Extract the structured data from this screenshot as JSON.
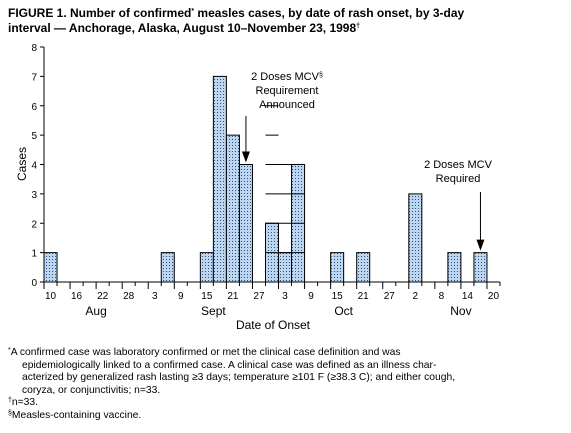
{
  "title": {
    "line1": "FIGURE 1. Number of confirmed",
    "mark1": "*",
    "line1b": " measles cases, by date of rash onset, by 3-day",
    "line2": "interval — Anchorage, Alaska, August 10–November 23, 1998",
    "mark2": "†"
  },
  "chart_data": {
    "type": "bar",
    "ylabel": "Cases",
    "xlabel": "Date of Onset",
    "ylim": [
      0,
      8
    ],
    "yticks": [
      "0",
      "1",
      "2",
      "3",
      "4",
      "5",
      "6",
      "7",
      "8"
    ],
    "xtick_labels": [
      "10",
      "16",
      "22",
      "28",
      "3",
      "9",
      "15",
      "21",
      "27",
      "3",
      "9",
      "15",
      "21",
      "27",
      "2",
      "8",
      "14",
      "20"
    ],
    "month_labels": [
      "Aug",
      "Sept",
      "Oct",
      "Nov"
    ],
    "categories": [
      "Aug 10",
      "Aug 13",
      "Aug 16",
      "Aug 19",
      "Aug 22",
      "Aug 25",
      "Aug 28",
      "Aug 31",
      "Sep 3",
      "Sep 6",
      "Sep 9",
      "Sep 12",
      "Sep 15",
      "Sep 18",
      "Sep 21",
      "Sep 24",
      "Sep 27",
      "Sep 30",
      "Oct 3",
      "Oct 6",
      "Oct 9",
      "Oct 12",
      "Oct 15",
      "Oct 18",
      "Oct 21",
      "Oct 24",
      "Oct 27",
      "Oct 30",
      "Nov 2",
      "Nov 5",
      "Nov 8",
      "Nov 11",
      "Nov 14",
      "Nov 17",
      "Nov 20"
    ],
    "values": [
      1,
      0,
      0,
      0,
      0,
      0,
      0,
      0,
      0,
      1,
      0,
      0,
      1,
      7,
      5,
      4,
      0,
      2,
      1,
      4,
      0,
      0,
      1,
      0,
      1,
      0,
      0,
      0,
      3,
      0,
      0,
      1,
      0,
      1,
      0
    ],
    "stacks": {
      "17": [
        1,
        1,
        1,
        1,
        1,
        1,
        1
      ],
      "18": [
        1,
        1,
        1,
        1,
        1
      ],
      "19": [
        1,
        1,
        1,
        1
      ],
      "21": [
        1,
        1
      ],
      "22": [
        1
      ],
      "23": [
        1,
        2,
        1
      ]
    },
    "annotations": [
      {
        "lines": [
          "2 Doses MCV",
          "Requirement",
          "Announced"
        ],
        "mark": "§",
        "category": "Sep 24"
      },
      {
        "lines": [
          "2 Doses MCV",
          "Required"
        ],
        "mark": "",
        "category": "Nov 17"
      }
    ]
  },
  "footnotes": [
    {
      "mark": "*",
      "lines": [
        "A confirmed case was laboratory confirmed or met the clinical case definition and was",
        "epidemiologically linked to a confirmed case. A clinical case was defined as an illness char-",
        "acterized by generalized rash lasting ≥3 days; temperature ≥101 F (≥38.3 C); and either cough,",
        "coryza, or conjunctivitis; n=33."
      ]
    },
    {
      "mark": "†",
      "lines": [
        "n=33."
      ]
    },
    {
      "mark": "§",
      "lines": [
        "Measles-containing vaccine."
      ]
    }
  ]
}
